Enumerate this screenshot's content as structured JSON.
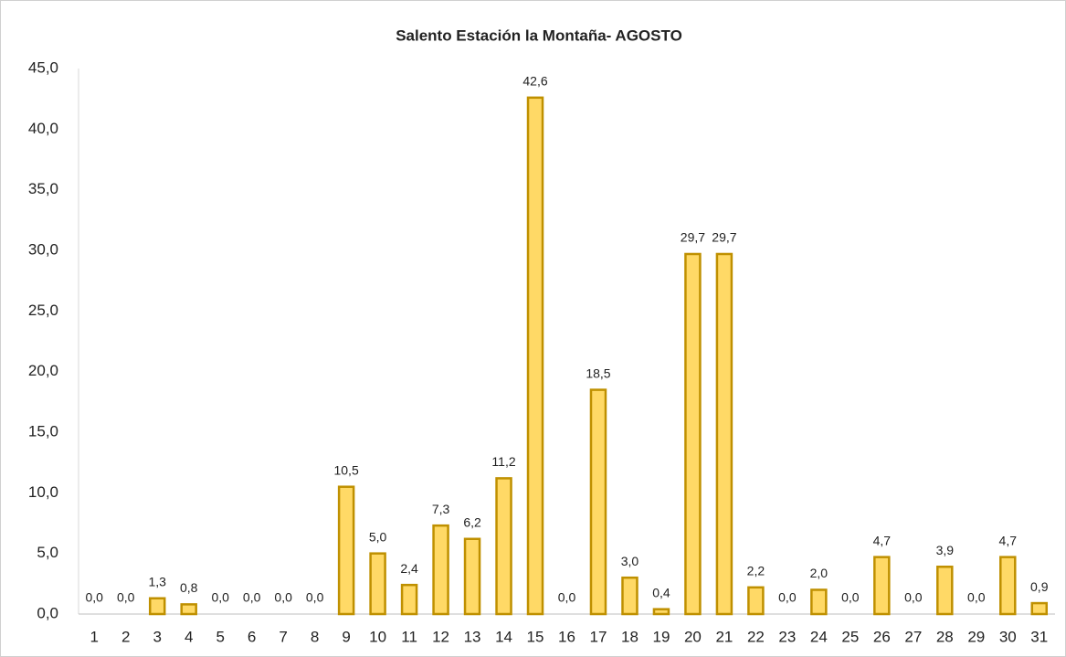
{
  "chart_data": {
    "type": "bar",
    "title": "Salento Estación la Montaña- AGOSTO",
    "categories": [
      "1",
      "2",
      "3",
      "4",
      "5",
      "6",
      "7",
      "8",
      "9",
      "10",
      "11",
      "12",
      "13",
      "14",
      "15",
      "16",
      "17",
      "18",
      "19",
      "20",
      "21",
      "22",
      "23",
      "24",
      "25",
      "26",
      "27",
      "28",
      "29",
      "30",
      "31"
    ],
    "values": [
      0,
      0,
      1.3,
      0.8,
      0,
      0,
      0,
      0,
      10.5,
      5.0,
      2.4,
      7.3,
      6.2,
      11.2,
      42.6,
      0,
      18.5,
      3.0,
      0.4,
      29.7,
      29.7,
      2.2,
      0,
      2.0,
      0,
      4.7,
      0,
      3.9,
      0,
      4.7,
      0.9
    ],
    "value_labels": [
      "0,0",
      "0,0",
      "1,3",
      "0,8",
      "0,0",
      "0,0",
      "0,0",
      "0,0",
      "10,5",
      "5,0",
      "2,4",
      "7,3",
      "6,2",
      "11,2",
      "42,6",
      "0,0",
      "18,5",
      "3,0",
      "0,4",
      "29,7",
      "29,7",
      "2,2",
      "0,0",
      "2,0",
      "0,0",
      "4,7",
      "0,0",
      "3,9",
      "0,0",
      "4,7",
      "0,9"
    ],
    "color": "#ffd966",
    "edge_color": "#bf9000",
    "ylim": [
      0,
      45
    ],
    "yticks": [
      {
        "value": 0,
        "label": "0,0"
      },
      {
        "value": 5,
        "label": "5,0"
      },
      {
        "value": 10,
        "label": "10,0"
      },
      {
        "value": 15,
        "label": "15,0"
      },
      {
        "value": 20,
        "label": "20,0"
      },
      {
        "value": 25,
        "label": "25,0"
      },
      {
        "value": 30,
        "label": "30,0"
      },
      {
        "value": 35,
        "label": "35,0"
      },
      {
        "value": 40,
        "label": "40,0"
      },
      {
        "value": 45,
        "label": "45,0"
      }
    ],
    "grid": false
  }
}
